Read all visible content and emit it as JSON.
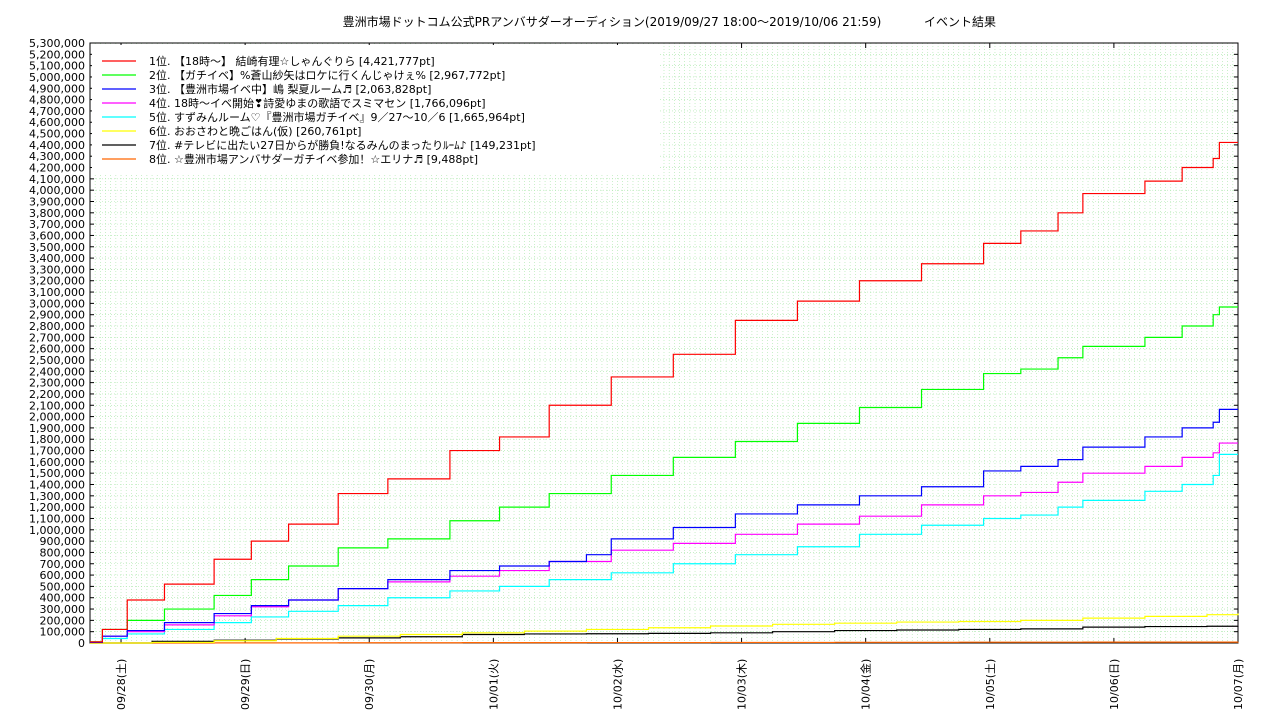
{
  "chart_data": {
    "type": "line",
    "title": "豊洲市場ドットコム公式PRアンバサダーオーディション(2019/09/27 18:00〜2019/10/06 21:59)",
    "subtitle": "イベント結果",
    "ylim": [
      0,
      5300000
    ],
    "y_ticks": [
      0,
      100000,
      200000,
      300000,
      400000,
      500000,
      600000,
      700000,
      800000,
      900000,
      1000000,
      1100000,
      1200000,
      1300000,
      1400000,
      1500000,
      1600000,
      1700000,
      1800000,
      1900000,
      2000000,
      2100000,
      2200000,
      2300000,
      2400000,
      2500000,
      2600000,
      2700000,
      2800000,
      2900000,
      3000000,
      3100000,
      3200000,
      3300000,
      3400000,
      3500000,
      3600000,
      3700000,
      3800000,
      3900000,
      4000000,
      4100000,
      4200000,
      4300000,
      4400000,
      4500000,
      4600000,
      4700000,
      4800000,
      4900000,
      5000000,
      5100000,
      5200000,
      5300000
    ],
    "y_tick_labels": [
      "0",
      "100,000",
      "200,000",
      "300,000",
      "400,000",
      "500,000",
      "600,000",
      "700,000",
      "800,000",
      "900,000",
      "1,000,000",
      "1,100,000",
      "1,200,000",
      "1,300,000",
      "1,400,000",
      "1,500,000",
      "1,600,000",
      "1,700,000",
      "1,800,000",
      "1,900,000",
      "2,000,000",
      "2,100,000",
      "2,200,000",
      "2,300,000",
      "2,400,000",
      "2,500,000",
      "2,600,000",
      "2,700,000",
      "2,800,000",
      "2,900,000",
      "3,000,000",
      "3,100,000",
      "3,200,000",
      "3,300,000",
      "3,400,000",
      "3,500,000",
      "3,600,000",
      "3,700,000",
      "3,800,000",
      "3,900,000",
      "4,000,000",
      "4,100,000",
      "4,200,000",
      "4,300,000",
      "4,400,000",
      "4,500,000",
      "4,600,000",
      "4,700,000",
      "4,800,000",
      "4,900,000",
      "5,000,000",
      "5,100,000",
      "5,200,000",
      "5,300,000"
    ],
    "x_range": [
      0,
      9.25
    ],
    "x_ticks": [
      0.25,
      1.25,
      2.25,
      3.25,
      4.25,
      5.25,
      6.25,
      7.25,
      8.25,
      9.25
    ],
    "x_tick_labels": [
      "09/28(土)",
      "09/29(日)",
      "09/30(月)",
      "10/01(火)",
      "10/02(水)",
      "10/03(木)",
      "10/04(金)",
      "10/05(土)",
      "10/06(日)",
      "10/07(月)"
    ],
    "grid": true,
    "legend_position": "top-left",
    "series": [
      {
        "name": "1位. 【18時〜】 結崎有理☆しゃんぐりら [4,421,777pt]",
        "color": "#ff0000",
        "x": [
          0,
          0.1,
          0.3,
          0.6,
          1.0,
          1.3,
          1.6,
          2.0,
          2.4,
          2.9,
          3.3,
          3.7,
          4.2,
          4.7,
          5.2,
          5.7,
          6.2,
          6.7,
          7.2,
          7.5,
          7.8,
          8.0,
          8.5,
          8.8,
          9.05,
          9.1,
          9.25
        ],
        "values": [
          10000,
          120000,
          380000,
          520000,
          740000,
          900000,
          1050000,
          1320000,
          1450000,
          1700000,
          1820000,
          2100000,
          2350000,
          2550000,
          2850000,
          3020000,
          3200000,
          3350000,
          3530000,
          3640000,
          3800000,
          3970000,
          4080000,
          4200000,
          4280000,
          4421777,
          4421777
        ]
      },
      {
        "name": "2位. 【ガチイベ】%蒼山紗矢はロケに行くんじゃけぇ% [2,967,772pt]",
        "color": "#00ff00",
        "x": [
          0,
          0.1,
          0.3,
          0.6,
          1.0,
          1.3,
          1.6,
          2.0,
          2.4,
          2.9,
          3.3,
          3.7,
          4.2,
          4.7,
          5.2,
          5.7,
          6.2,
          6.7,
          7.2,
          7.5,
          7.8,
          8.0,
          8.5,
          8.8,
          9.05,
          9.1,
          9.25
        ],
        "values": [
          10000,
          120000,
          200000,
          300000,
          420000,
          560000,
          680000,
          840000,
          920000,
          1080000,
          1200000,
          1320000,
          1480000,
          1640000,
          1780000,
          1940000,
          2080000,
          2240000,
          2380000,
          2420000,
          2520000,
          2620000,
          2700000,
          2800000,
          2900000,
          2967772,
          2967772
        ]
      },
      {
        "name": "3位. 【豊洲市場イベ中】嶋 梨夏ルーム♬ [2,063,828pt]",
        "color": "#0000ff",
        "x": [
          0,
          0.1,
          0.3,
          0.6,
          1.0,
          1.3,
          1.6,
          2.0,
          2.4,
          2.9,
          3.3,
          3.7,
          4.0,
          4.2,
          4.7,
          5.2,
          5.7,
          6.2,
          6.7,
          7.0,
          7.2,
          7.5,
          7.8,
          8.0,
          8.5,
          8.8,
          9.05,
          9.1,
          9.25
        ],
        "values": [
          5000,
          60000,
          110000,
          180000,
          260000,
          330000,
          380000,
          480000,
          560000,
          640000,
          680000,
          720000,
          780000,
          920000,
          1020000,
          1140000,
          1220000,
          1300000,
          1380000,
          1380000,
          1520000,
          1560000,
          1620000,
          1730000,
          1820000,
          1900000,
          1950000,
          2063828,
          2063828
        ]
      },
      {
        "name": "4位. 18時〜イベ開始❣詩愛ゆまの歌語でスミマセン [1,766,096pt]",
        "color": "#ff00ff",
        "x": [
          0,
          0.1,
          0.3,
          0.6,
          1.0,
          1.3,
          1.6,
          2.0,
          2.4,
          2.9,
          3.3,
          3.7,
          4.2,
          4.7,
          5.2,
          5.7,
          6.2,
          6.7,
          7.2,
          7.5,
          7.8,
          8.0,
          8.5,
          8.8,
          9.05,
          9.1,
          9.25
        ],
        "values": [
          5000,
          60000,
          100000,
          160000,
          240000,
          320000,
          380000,
          480000,
          540000,
          590000,
          640000,
          720000,
          820000,
          880000,
          960000,
          1050000,
          1120000,
          1220000,
          1300000,
          1330000,
          1420000,
          1500000,
          1560000,
          1640000,
          1680000,
          1766096,
          1766096
        ]
      },
      {
        "name": "5位. すずみんルーム♡『豊洲市場ガチイベ』9／27〜10／6 [1,665,964pt]",
        "color": "#00ffff",
        "x": [
          0,
          0.1,
          0.3,
          0.6,
          1.0,
          1.3,
          1.6,
          2.0,
          2.4,
          2.9,
          3.3,
          3.7,
          4.2,
          4.7,
          5.2,
          5.7,
          6.2,
          6.7,
          7.2,
          7.5,
          7.8,
          8.0,
          8.5,
          8.8,
          9.05,
          9.1,
          9.25
        ],
        "values": [
          5000,
          40000,
          80000,
          120000,
          180000,
          230000,
          280000,
          330000,
          400000,
          460000,
          500000,
          560000,
          620000,
          700000,
          780000,
          850000,
          960000,
          1040000,
          1100000,
          1130000,
          1200000,
          1260000,
          1340000,
          1400000,
          1480000,
          1665964,
          1665964
        ]
      },
      {
        "name": "6位. おおさわと晩ごはん(仮) [260,761pt]",
        "color": "#ffff00",
        "x": [
          0,
          0.5,
          1.0,
          1.5,
          2.0,
          2.5,
          3.0,
          3.5,
          4.0,
          4.5,
          5.0,
          5.5,
          6.0,
          6.5,
          7.0,
          7.5,
          8.0,
          8.5,
          9.0,
          9.25
        ],
        "values": [
          0,
          5000,
          20000,
          40000,
          60000,
          75000,
          90000,
          105000,
          120000,
          135000,
          150000,
          165000,
          175000,
          185000,
          190000,
          200000,
          220000,
          235000,
          250000,
          260761
        ]
      },
      {
        "name": "7位. #テレビに出たい27日からが勝負!なるみんのまったりﾙｰﾑ♪ [149,231pt]",
        "color": "#000000",
        "x": [
          0,
          0.5,
          1.0,
          1.5,
          2.0,
          2.5,
          3.0,
          3.5,
          4.0,
          4.5,
          5.0,
          5.5,
          6.0,
          6.5,
          7.0,
          7.5,
          8.0,
          8.5,
          9.0,
          9.25
        ],
        "values": [
          0,
          15000,
          25000,
          35000,
          45000,
          55000,
          75000,
          80000,
          82000,
          85000,
          90000,
          100000,
          110000,
          115000,
          120000,
          125000,
          140000,
          145000,
          148000,
          149231
        ]
      },
      {
        "name": "8位. ☆豊洲市場アンバサダーガチイベ参加！☆エリナ♬ [9,488pt]",
        "color": "#ff6600",
        "x": [
          0,
          1.0,
          2.0,
          3.0,
          4.0,
          5.0,
          6.0,
          7.0,
          8.0,
          9.25
        ],
        "values": [
          0,
          1000,
          2000,
          3000,
          4000,
          5000,
          6000,
          7000,
          8000,
          9488
        ]
      }
    ]
  }
}
